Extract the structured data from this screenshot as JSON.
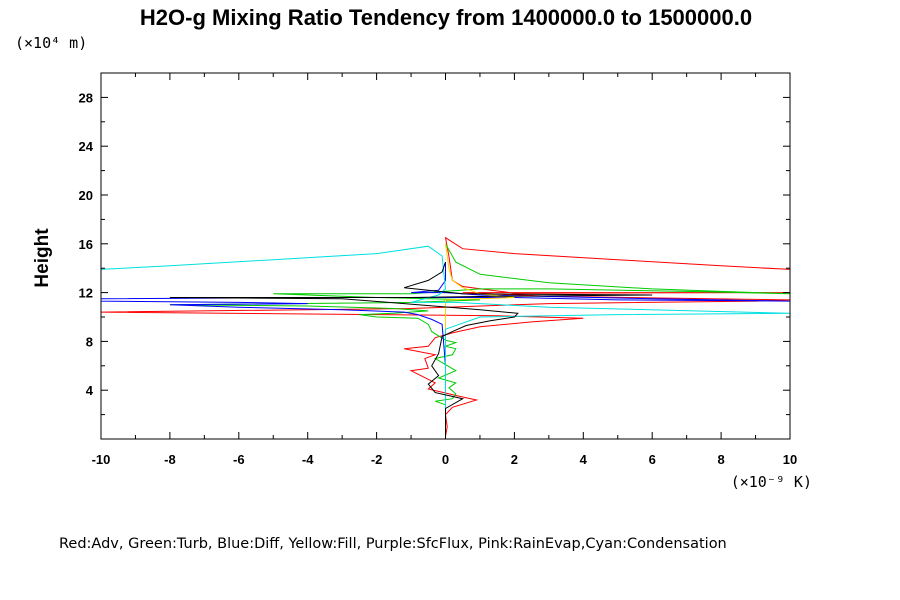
{
  "chart_data": {
    "type": "line",
    "title": "H2O-g Mixing Ratio Tendency from 1400000.0 to 1500000.0",
    "ylabel": "Height",
    "yunit": "(×10⁴ m)",
    "xunit": "(×10⁻⁹ K)",
    "xlim": [
      -10,
      10
    ],
    "ylim": [
      0,
      30
    ],
    "xticks": [
      -10,
      -8,
      -6,
      -4,
      -2,
      0,
      2,
      4,
      6,
      8,
      10
    ],
    "yticks": [
      4,
      8,
      12,
      16,
      20,
      24,
      28
    ],
    "grid": false,
    "legend_text": "Red:Adv, Green:Turb, Blue:Diff, Yellow:Fill, Purple:SfcFlux, Pink:RainEvap,Cyan:Condensation",
    "series": [
      {
        "key": "adv",
        "color": "#ff0000",
        "points": [
          [
            0,
            0.2
          ],
          [
            0.05,
            1
          ],
          [
            0,
            2
          ],
          [
            0.2,
            2.6
          ],
          [
            0.9,
            3.2
          ],
          [
            0.4,
            3.5
          ],
          [
            -0.2,
            3.9
          ],
          [
            -0.5,
            4.1
          ],
          [
            -0.3,
            4.6
          ],
          [
            -1,
            5.6
          ],
          [
            -0.5,
            5.8
          ],
          [
            -0.6,
            6.6
          ],
          [
            -0.3,
            6.9
          ],
          [
            -1.2,
            7.4
          ],
          [
            -0.5,
            7.6
          ],
          [
            -0.3,
            8.3
          ],
          [
            0.2,
            8.7
          ],
          [
            1,
            9.2
          ],
          [
            2.5,
            9.6
          ],
          [
            4,
            9.9
          ],
          [
            1.5,
            10.1
          ],
          [
            -2,
            10.2
          ],
          [
            -10,
            10.4
          ],
          [
            -1,
            10.7
          ],
          [
            3,
            11.1
          ],
          [
            9,
            11.3
          ],
          [
            10,
            11.4
          ],
          [
            3,
            11.7
          ],
          [
            0.5,
            12
          ],
          [
            10,
            12
          ],
          [
            2,
            11.95
          ],
          [
            0.5,
            12.5
          ],
          [
            0.2,
            13
          ],
          [
            0.1,
            15
          ],
          [
            0,
            16.5
          ],
          [
            0.5,
            15.6
          ],
          [
            2,
            15.2
          ],
          [
            5,
            14.7
          ],
          [
            8,
            14.2
          ],
          [
            10,
            13.9
          ]
        ]
      },
      {
        "key": "turb",
        "color": "#00cc00",
        "points": [
          [
            0,
            0.2
          ],
          [
            0,
            2.8
          ],
          [
            -0.3,
            3.1
          ],
          [
            0.2,
            3.3
          ],
          [
            0.3,
            3.7
          ],
          [
            0.1,
            4.2
          ],
          [
            0.3,
            4.6
          ],
          [
            -0.2,
            5
          ],
          [
            0.3,
            5.6
          ],
          [
            0,
            6.1
          ],
          [
            -0.3,
            6.6
          ],
          [
            0.2,
            6.9
          ],
          [
            0.3,
            7.4
          ],
          [
            0,
            7.6
          ],
          [
            0.3,
            7.9
          ],
          [
            0,
            8.1
          ],
          [
            -0.4,
            8.8
          ],
          [
            -0.5,
            9.4
          ],
          [
            -0.8,
            9.9
          ],
          [
            -2,
            10
          ],
          [
            -2.5,
            10.2
          ],
          [
            -1.5,
            10.3
          ],
          [
            -0.5,
            10.5
          ],
          [
            -1.5,
            10.7
          ],
          [
            -4,
            10.9
          ],
          [
            -8,
            11
          ],
          [
            -1,
            11.2
          ],
          [
            1,
            11.4
          ],
          [
            -2,
            11.6
          ],
          [
            -5,
            11.9
          ],
          [
            -1,
            11.9
          ],
          [
            1,
            12.3
          ],
          [
            3,
            12.3
          ],
          [
            7,
            12.1
          ],
          [
            10,
            11.9
          ],
          [
            6,
            12.3
          ],
          [
            3,
            12.8
          ],
          [
            1,
            13.5
          ],
          [
            0.3,
            14.5
          ],
          [
            0,
            16
          ]
        ]
      },
      {
        "key": "diff",
        "color": "#0000ff",
        "points": [
          [
            0,
            0
          ],
          [
            0,
            6
          ],
          [
            -0.1,
            9.4
          ],
          [
            -0.4,
            9.8
          ],
          [
            -0.8,
            10.2
          ],
          [
            -1.2,
            10.4
          ],
          [
            -3,
            10.6
          ],
          [
            -6,
            10.8
          ],
          [
            -8,
            11
          ],
          [
            -4,
            11.1
          ],
          [
            -6,
            11.2
          ],
          [
            -10,
            11.3
          ],
          [
            -10,
            11.5
          ],
          [
            -3,
            11.6
          ],
          [
            2,
            11.6
          ],
          [
            5,
            11.4
          ],
          [
            10,
            11.3
          ],
          [
            6,
            11.5
          ],
          [
            1,
            11.8
          ],
          [
            0,
            12
          ],
          [
            -1,
            12
          ],
          [
            -0.2,
            12.2
          ],
          [
            0,
            13
          ],
          [
            0,
            14.5
          ]
        ]
      },
      {
        "key": "fill",
        "color": "#ffd200",
        "points": [
          [
            0,
            0.2
          ],
          [
            0,
            11.4
          ],
          [
            2,
            11.6
          ],
          [
            1,
            11.9
          ],
          [
            0.5,
            12.4
          ],
          [
            0.2,
            13
          ],
          [
            0.1,
            14
          ],
          [
            0,
            16
          ]
        ]
      },
      {
        "key": "condensation",
        "color": "#00e0e0",
        "points": [
          [
            0,
            0.2
          ],
          [
            0,
            3
          ],
          [
            0,
            9
          ],
          [
            1,
            10
          ],
          [
            5,
            10.2
          ],
          [
            10,
            10.3
          ],
          [
            3,
            10.8
          ],
          [
            0.3,
            11.2
          ],
          [
            -1,
            11.2
          ],
          [
            -0.2,
            11.8
          ],
          [
            0,
            12.3
          ],
          [
            -0.1,
            15
          ],
          [
            -0.5,
            15.8
          ],
          [
            -2,
            15.2
          ],
          [
            -5,
            14.7
          ],
          [
            -8,
            14.2
          ],
          [
            -10,
            13.9
          ],
          [
            -10,
            13.8
          ]
        ]
      },
      {
        "key": "total",
        "color": "#000000",
        "points": [
          [
            0,
            0.2
          ],
          [
            0,
            2.5
          ],
          [
            0.5,
            3.3
          ],
          [
            -0.3,
            3.8
          ],
          [
            -0.5,
            4.5
          ],
          [
            -0.2,
            5.2
          ],
          [
            -0.4,
            6
          ],
          [
            -0.2,
            7
          ],
          [
            -0.1,
            8.4
          ],
          [
            0.2,
            8.8
          ],
          [
            0.6,
            9.3
          ],
          [
            1.3,
            9.7
          ],
          [
            2,
            10
          ],
          [
            2.1,
            10.3
          ],
          [
            1,
            10.6
          ],
          [
            -3,
            11.5
          ],
          [
            -8,
            11.6
          ],
          [
            -1,
            11.6
          ],
          [
            1.5,
            11.7
          ],
          [
            6,
            11.8
          ],
          [
            0.5,
            11.9
          ],
          [
            -0.5,
            12.2
          ],
          [
            -1.2,
            12.4
          ],
          [
            -0.5,
            13
          ],
          [
            -0.1,
            13.7
          ],
          [
            0,
            14.5
          ]
        ]
      }
    ]
  }
}
